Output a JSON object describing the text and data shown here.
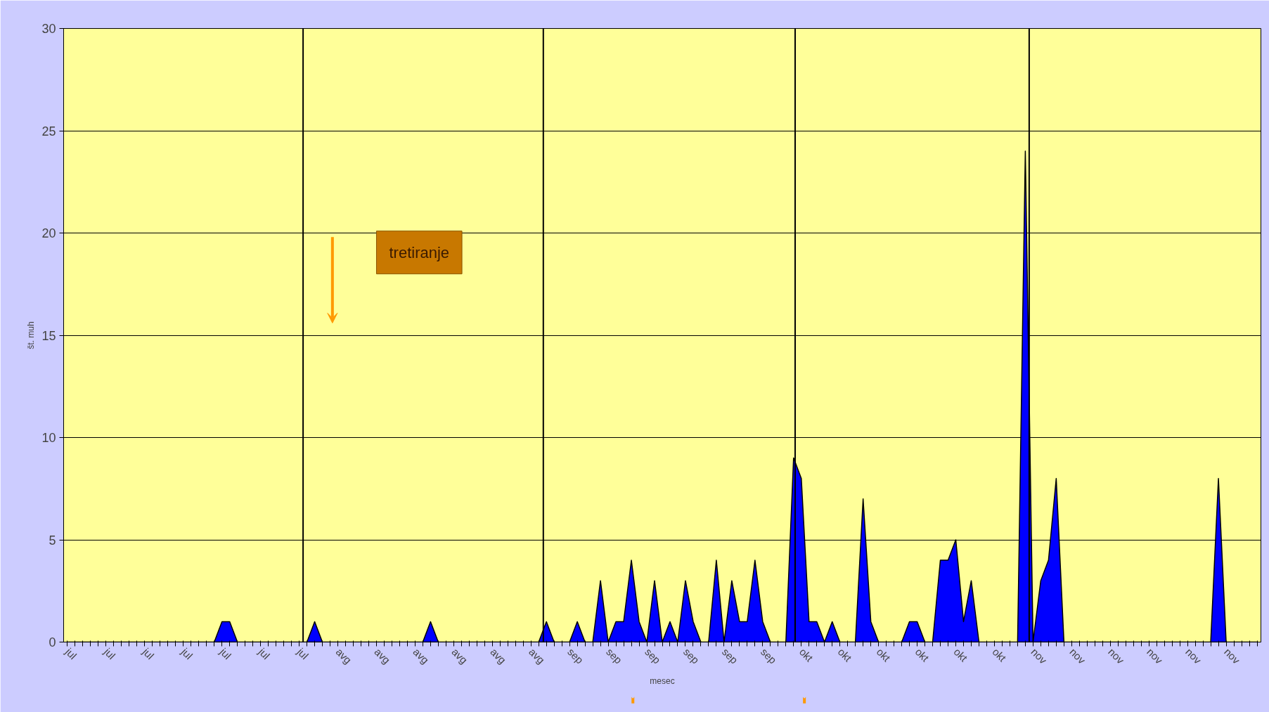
{
  "chart_data": {
    "type": "area",
    "xlabel": "mesec",
    "ylabel": "št. muh",
    "categories": [
      "jul",
      null,
      null,
      null,
      null,
      "jul",
      null,
      null,
      null,
      null,
      "jul",
      null,
      null,
      null,
      null,
      "jul",
      null,
      null,
      null,
      null,
      "jul",
      null,
      null,
      null,
      null,
      "jul",
      null,
      null,
      null,
      null,
      "jul",
      null,
      null,
      null,
      null,
      "avg",
      null,
      null,
      null,
      null,
      "avg",
      null,
      null,
      null,
      null,
      "avg",
      null,
      null,
      null,
      null,
      "avg",
      null,
      null,
      null,
      null,
      "avg",
      null,
      null,
      null,
      null,
      "avg",
      null,
      null,
      null,
      null,
      "sep",
      null,
      null,
      null,
      null,
      "sep",
      null,
      null,
      null,
      null,
      "sep",
      null,
      null,
      null,
      null,
      "sep",
      null,
      null,
      null,
      null,
      "sep",
      null,
      null,
      null,
      null,
      "sep",
      null,
      null,
      null,
      null,
      "okt",
      null,
      null,
      null,
      null,
      "okt",
      null,
      null,
      null,
      null,
      "okt",
      null,
      null,
      null,
      null,
      "okt",
      null,
      null,
      null,
      null,
      "okt",
      null,
      null,
      null,
      null,
      "okt",
      null,
      null,
      null,
      null,
      "nov",
      null,
      null,
      null,
      null,
      "nov",
      null,
      null,
      null,
      null,
      "nov",
      null,
      null,
      null,
      null,
      "nov",
      null,
      null,
      null,
      null,
      "nov",
      null,
      null,
      null,
      null,
      "nov",
      null,
      null,
      null,
      null
    ],
    "series": [
      {
        "color": "#0000ff",
        "values": [
          0,
          0,
          0,
          0,
          0,
          0,
          0,
          0,
          0,
          0,
          0,
          0,
          0,
          0,
          0,
          0,
          0,
          0,
          0,
          0,
          1,
          1,
          0,
          0,
          0,
          0,
          0,
          0,
          0,
          0,
          0,
          0,
          1,
          0,
          0,
          0,
          0,
          0,
          0,
          0,
          0,
          0,
          0,
          0,
          0,
          0,
          0,
          1,
          0,
          0,
          0,
          0,
          0,
          0,
          0,
          0,
          0,
          0,
          0,
          0,
          0,
          0,
          1,
          0,
          0,
          0,
          1,
          0,
          0,
          3,
          0,
          1,
          1,
          4,
          1,
          0,
          3,
          0,
          1,
          0,
          3,
          1,
          0,
          0,
          4,
          0,
          3,
          1,
          1,
          4,
          1,
          0,
          0,
          0,
          9,
          8,
          1,
          1,
          0,
          1,
          0,
          0,
          0,
          7,
          1,
          0,
          0,
          0,
          0,
          1,
          1,
          0,
          0,
          4,
          4,
          5,
          1,
          3,
          0,
          0,
          0,
          0,
          0,
          0,
          24,
          0,
          3,
          4,
          8,
          0,
          0,
          0,
          0,
          0,
          0,
          0,
          0,
          0,
          0,
          0,
          0,
          0,
          0,
          0,
          0,
          0,
          0,
          0,
          0,
          8,
          0,
          0,
          0,
          0,
          0
        ]
      }
    ],
    "ylim": [
      0,
      30
    ],
    "yticks": [
      0,
      5,
      10,
      15,
      20,
      25,
      30
    ],
    "grid": "y",
    "annotations": [
      "tretiranje"
    ]
  }
}
